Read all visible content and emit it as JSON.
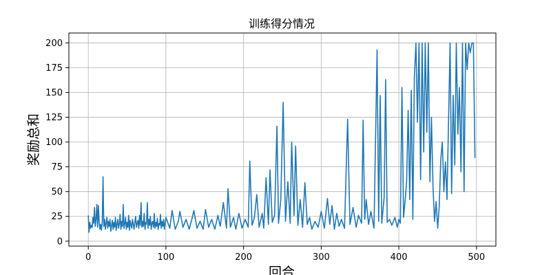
{
  "chart_data": {
    "type": "line",
    "title": "训练得分情况",
    "xlabel": "回合",
    "ylabel": "奖励总和",
    "xlim": [
      -25,
      525
    ],
    "ylim": [
      -5,
      210
    ],
    "xticks": [
      0,
      100,
      200,
      300,
      400,
      500
    ],
    "yticks": [
      0,
      25,
      50,
      75,
      100,
      125,
      150,
      175,
      200
    ],
    "grid": true,
    "line_color": "#1f77b4",
    "keypoints": [
      [
        0,
        26
      ],
      [
        1,
        9
      ],
      [
        2,
        19
      ],
      [
        3,
        13
      ],
      [
        4,
        16
      ],
      [
        5,
        14
      ],
      [
        6,
        24
      ],
      [
        7,
        18
      ],
      [
        8,
        34
      ],
      [
        9,
        15
      ],
      [
        10,
        22
      ],
      [
        11,
        37
      ],
      [
        12,
        14
      ],
      [
        13,
        36
      ],
      [
        14,
        19
      ],
      [
        15,
        12
      ],
      [
        16,
        17
      ],
      [
        17,
        11
      ],
      [
        18,
        20
      ],
      [
        19,
        65
      ],
      [
        20,
        15
      ],
      [
        21,
        22
      ],
      [
        22,
        12
      ],
      [
        23,
        18
      ],
      [
        24,
        24
      ],
      [
        25,
        13
      ],
      [
        26,
        20
      ],
      [
        27,
        15
      ],
      [
        28,
        22
      ],
      [
        29,
        10
      ],
      [
        30,
        16
      ],
      [
        31,
        21
      ],
      [
        32,
        12
      ],
      [
        33,
        19
      ],
      [
        34,
        14
      ],
      [
        35,
        24
      ],
      [
        36,
        11
      ],
      [
        37,
        17
      ],
      [
        38,
        22
      ],
      [
        39,
        13
      ],
      [
        40,
        18
      ],
      [
        41,
        27
      ],
      [
        42,
        12
      ],
      [
        43,
        20
      ],
      [
        44,
        15
      ],
      [
        45,
        37
      ],
      [
        46,
        13
      ],
      [
        47,
        18
      ],
      [
        48,
        24
      ],
      [
        49,
        12
      ],
      [
        50,
        19
      ],
      [
        51,
        14
      ],
      [
        52,
        26
      ],
      [
        53,
        11
      ],
      [
        54,
        21
      ],
      [
        55,
        16
      ],
      [
        56,
        13
      ],
      [
        57,
        22
      ],
      [
        58,
        17
      ],
      [
        59,
        12
      ],
      [
        60,
        19
      ],
      [
        61,
        25
      ],
      [
        62,
        14
      ],
      [
        63,
        18
      ],
      [
        64,
        21
      ],
      [
        65,
        13
      ],
      [
        66,
        26
      ],
      [
        67,
        16
      ],
      [
        68,
        39
      ],
      [
        69,
        14
      ],
      [
        70,
        20
      ],
      [
        71,
        15
      ],
      [
        72,
        28
      ],
      [
        73,
        12
      ],
      [
        74,
        19
      ],
      [
        75,
        17
      ],
      [
        76,
        39
      ],
      [
        77,
        13
      ],
      [
        78,
        22
      ],
      [
        79,
        16
      ],
      [
        80,
        25
      ],
      [
        81,
        12
      ],
      [
        82,
        18
      ],
      [
        83,
        20
      ],
      [
        84,
        14
      ],
      [
        85,
        28
      ],
      [
        86,
        13
      ],
      [
        87,
        19
      ],
      [
        88,
        15
      ],
      [
        89,
        23
      ],
      [
        90,
        12
      ],
      [
        91,
        18
      ],
      [
        92,
        16
      ],
      [
        93,
        27
      ],
      [
        94,
        13
      ],
      [
        95,
        20
      ],
      [
        96,
        15
      ],
      [
        97,
        22
      ],
      [
        98,
        12
      ],
      [
        99,
        18
      ],
      [
        100,
        24
      ],
      [
        105,
        13
      ],
      [
        108,
        31
      ],
      [
        112,
        12
      ],
      [
        116,
        20
      ],
      [
        118,
        30
      ],
      [
        122,
        14
      ],
      [
        126,
        22
      ],
      [
        130,
        12
      ],
      [
        134,
        24
      ],
      [
        136,
        31
      ],
      [
        140,
        13
      ],
      [
        144,
        20
      ],
      [
        148,
        12
      ],
      [
        151,
        32
      ],
      [
        155,
        14
      ],
      [
        159,
        22
      ],
      [
        163,
        12
      ],
      [
        167,
        26
      ],
      [
        170,
        15
      ],
      [
        174,
        39
      ],
      [
        178,
        13
      ],
      [
        180,
        53
      ],
      [
        183,
        14
      ],
      [
        187,
        24
      ],
      [
        190,
        12
      ],
      [
        194,
        28
      ],
      [
        198,
        13
      ],
      [
        202,
        22
      ],
      [
        206,
        14
      ],
      [
        208,
        81
      ],
      [
        211,
        16
      ],
      [
        214,
        24
      ],
      [
        217,
        47
      ],
      [
        220,
        14
      ],
      [
        224,
        28
      ],
      [
        226,
        13
      ],
      [
        229,
        64
      ],
      [
        232,
        17
      ],
      [
        234,
        72
      ],
      [
        237,
        19
      ],
      [
        240,
        26
      ],
      [
        243,
        116
      ],
      [
        245,
        18
      ],
      [
        248,
        42
      ],
      [
        251,
        140
      ],
      [
        254,
        20
      ],
      [
        257,
        60
      ],
      [
        260,
        18
      ],
      [
        262,
        100
      ],
      [
        265,
        26
      ],
      [
        267,
        96
      ],
      [
        270,
        16
      ],
      [
        273,
        42
      ],
      [
        276,
        14
      ],
      [
        279,
        59
      ],
      [
        282,
        17
      ],
      [
        285,
        24
      ],
      [
        288,
        12
      ],
      [
        292,
        20
      ],
      [
        296,
        14
      ],
      [
        300,
        30
      ],
      [
        304,
        13
      ],
      [
        308,
        43
      ],
      [
        311,
        17
      ],
      [
        314,
        36
      ],
      [
        317,
        12
      ],
      [
        320,
        28
      ],
      [
        323,
        15
      ],
      [
        326,
        22
      ],
      [
        330,
        13
      ],
      [
        334,
        123
      ],
      [
        337,
        17
      ],
      [
        341,
        34
      ],
      [
        345,
        14
      ],
      [
        348,
        26
      ],
      [
        352,
        18
      ],
      [
        354,
        122
      ],
      [
        356,
        22
      ],
      [
        358,
        42
      ],
      [
        361,
        17
      ],
      [
        364,
        30
      ],
      [
        368,
        13
      ],
      [
        372,
        193
      ],
      [
        374,
        20
      ],
      [
        376,
        147
      ],
      [
        378,
        18
      ],
      [
        381,
        44
      ],
      [
        383,
        163
      ],
      [
        385,
        19
      ],
      [
        388,
        22
      ],
      [
        391,
        16
      ],
      [
        395,
        24
      ],
      [
        398,
        14
      ],
      [
        400,
        22
      ],
      [
        402,
        18
      ],
      [
        404,
        155
      ],
      [
        406,
        24
      ],
      [
        408,
        40
      ],
      [
        410,
        60
      ],
      [
        412,
        132
      ],
      [
        414,
        42
      ],
      [
        416,
        152
      ],
      [
        418,
        22
      ],
      [
        420,
        165
      ],
      [
        422,
        200
      ],
      [
        424,
        120
      ],
      [
        426,
        200
      ],
      [
        428,
        62
      ],
      [
        430,
        200
      ],
      [
        432,
        90
      ],
      [
        434,
        200
      ],
      [
        436,
        110
      ],
      [
        438,
        200
      ],
      [
        440,
        60
      ],
      [
        442,
        125
      ],
      [
        444,
        55
      ],
      [
        446,
        20
      ],
      [
        448,
        40
      ],
      [
        450,
        13
      ],
      [
        452,
        35
      ],
      [
        454,
        83
      ],
      [
        456,
        100
      ],
      [
        458,
        50
      ],
      [
        460,
        80
      ],
      [
        462,
        42
      ],
      [
        464,
        120
      ],
      [
        466,
        200
      ],
      [
        468,
        48
      ],
      [
        470,
        147
      ],
      [
        472,
        77
      ],
      [
        474,
        200
      ],
      [
        476,
        108
      ],
      [
        478,
        155
      ],
      [
        480,
        70
      ],
      [
        482,
        200
      ],
      [
        484,
        50
      ],
      [
        486,
        200
      ],
      [
        488,
        173
      ],
      [
        490,
        200
      ],
      [
        492,
        190
      ],
      [
        494,
        200
      ],
      [
        496,
        200
      ],
      [
        498,
        84
      ]
    ]
  }
}
